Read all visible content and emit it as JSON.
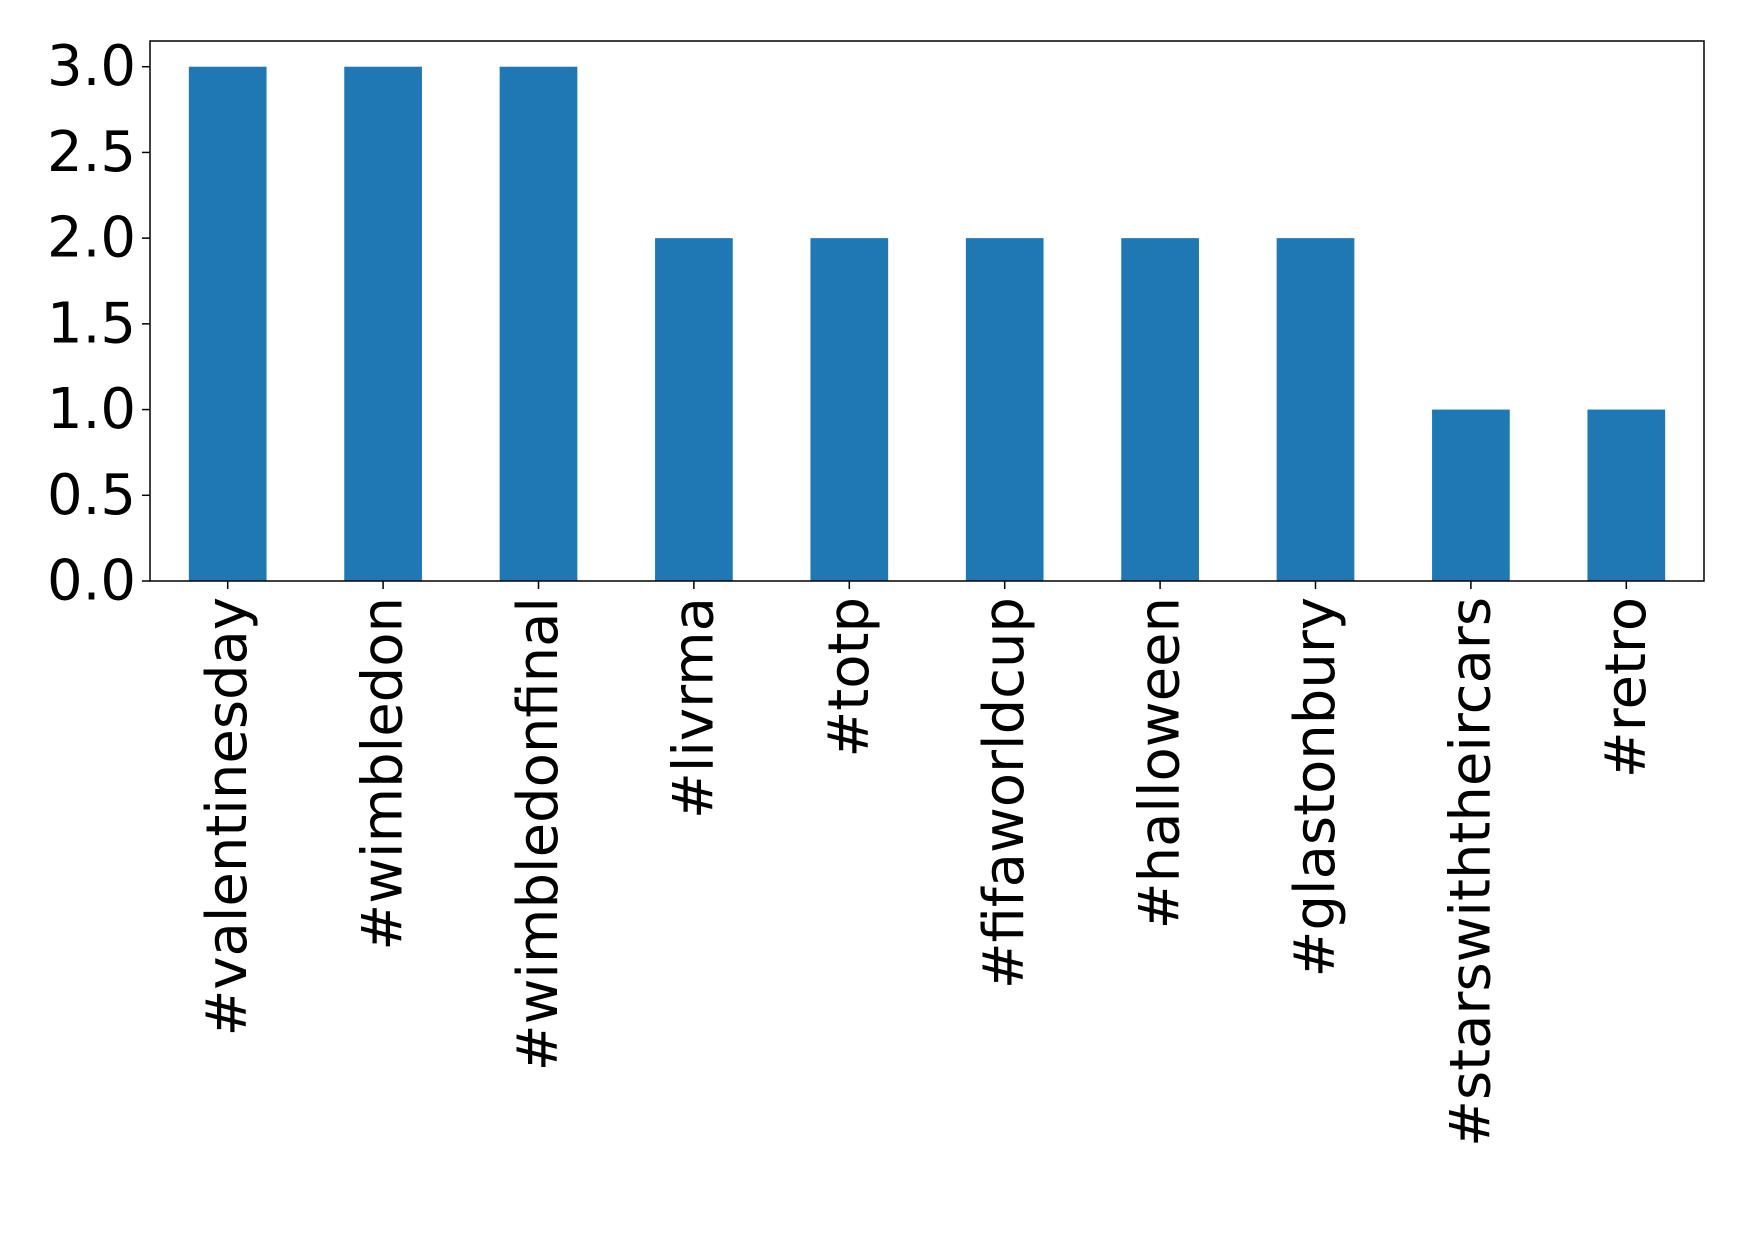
{
  "chart_data": {
    "type": "bar",
    "title": "",
    "xlabel": "",
    "ylabel": "",
    "categories": [
      "#valentinesday",
      "#wimbledon",
      "#wimbledonfinal",
      "#livrma",
      "#totp",
      "#fifaworldcup",
      "#halloween",
      "#glastonbury",
      "#starswiththeircars",
      "#retro"
    ],
    "values": [
      3,
      3,
      3,
      2,
      2,
      2,
      2,
      2,
      1,
      1
    ],
    "ylim": [
      0,
      3.15
    ],
    "yticks": [
      0.0,
      0.5,
      1.0,
      1.5,
      2.0,
      2.5,
      3.0
    ],
    "ytick_labels": [
      "0.0",
      "0.5",
      "1.0",
      "1.5",
      "2.0",
      "2.5",
      "3.0"
    ],
    "grid": false,
    "legend": "none",
    "bar_color": "#1f77b4"
  }
}
